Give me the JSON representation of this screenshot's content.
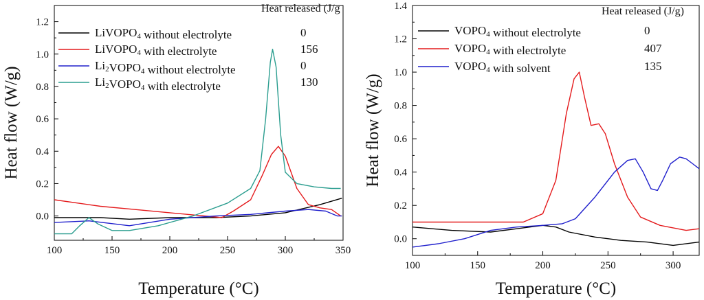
{
  "chart_data": [
    {
      "type": "line",
      "id": "left",
      "header": "Heat released (J/g",
      "xlabel": "Temperature (°C)",
      "ylabel": "Heat flow (W/g)",
      "xlim": [
        100,
        350
      ],
      "ylim": [
        -0.15,
        1.3
      ],
      "xticks": [
        100,
        150,
        200,
        250,
        300,
        350
      ],
      "yticks": [
        0.0,
        0.2,
        0.4,
        0.6,
        0.8,
        1.0,
        1.2
      ],
      "ytick_labels": [
        "0.0",
        "0.2",
        "0.4",
        "0.6",
        "0.8",
        "1.0",
        "1.2"
      ],
      "series": [
        {
          "name": "LiVOPO₄ without electrolyte",
          "heat": "0",
          "color": "#000000",
          "x": [
            100,
            140,
            165,
            200,
            240,
            270,
            300,
            330,
            349
          ],
          "y": [
            -0.01,
            -0.01,
            -0.02,
            -0.01,
            -0.01,
            0.0,
            0.02,
            0.07,
            0.11
          ]
        },
        {
          "name": "LiVOPO₄ with electrolyte",
          "heat": "156",
          "color": "#e41a1c",
          "x": [
            100,
            140,
            170,
            200,
            230,
            245,
            255,
            270,
            280,
            288,
            294,
            300,
            310,
            320,
            330,
            340,
            348
          ],
          "y": [
            0.1,
            0.06,
            0.04,
            0.02,
            0.0,
            -0.01,
            0.03,
            0.1,
            0.25,
            0.38,
            0.43,
            0.37,
            0.17,
            0.07,
            0.05,
            0.04,
            0.0
          ]
        },
        {
          "name": "Li₂VOPO₄ without electrolyte",
          "heat": "0",
          "color": "#1f1fcc",
          "x": [
            100,
            130,
            165,
            200,
            240,
            270,
            300,
            320,
            335,
            345,
            349
          ],
          "y": [
            -0.04,
            -0.03,
            -0.06,
            -0.02,
            0.0,
            0.01,
            0.03,
            0.04,
            0.03,
            0.0,
            0.0
          ]
        },
        {
          "name": "Li₂VOPO₄ with electrolyte",
          "heat": "130",
          "color": "#2a9d8f",
          "x": [
            100,
            115,
            122,
            130,
            138,
            150,
            165,
            190,
            220,
            250,
            270,
            278,
            283,
            287,
            289,
            292,
            296,
            300,
            310,
            325,
            340,
            348
          ],
          "y": [
            -0.11,
            -0.11,
            -0.06,
            -0.01,
            -0.05,
            -0.09,
            -0.09,
            -0.06,
            0.0,
            0.08,
            0.17,
            0.28,
            0.6,
            0.95,
            1.03,
            0.92,
            0.5,
            0.27,
            0.2,
            0.18,
            0.17,
            0.17
          ]
        }
      ]
    },
    {
      "type": "line",
      "id": "right",
      "header": "Heat released (J/g)",
      "xlabel": "Temperature (°C)",
      "ylabel": "Heat flow (W/g)",
      "xlim": [
        100,
        320
      ],
      "ylim": [
        -0.1,
        1.4
      ],
      "xticks": [
        100,
        150,
        200,
        250,
        300
      ],
      "yticks": [
        0.0,
        0.2,
        0.4,
        0.6,
        0.8,
        1.0,
        1.2,
        1.4
      ],
      "ytick_labels": [
        "0.0",
        "0.2",
        "0.4",
        "0.6",
        "0.8",
        "1.0",
        "1.2",
        "1.4"
      ],
      "series": [
        {
          "name": "VOPO₄ without electrolyte",
          "heat": "0",
          "color": "#000000",
          "x": [
            100,
            130,
            160,
            180,
            200,
            210,
            220,
            240,
            260,
            280,
            300,
            320
          ],
          "y": [
            0.07,
            0.05,
            0.04,
            0.06,
            0.08,
            0.07,
            0.04,
            0.01,
            -0.01,
            -0.02,
            -0.04,
            -0.02
          ]
        },
        {
          "name": "VOPO₄ with electrolyte",
          "heat": "407",
          "color": "#e41a1c",
          "x": [
            100,
            150,
            185,
            200,
            210,
            218,
            224,
            228,
            232,
            237,
            243,
            248,
            255,
            265,
            275,
            290,
            310,
            320
          ],
          "y": [
            0.1,
            0.1,
            0.1,
            0.15,
            0.35,
            0.75,
            0.96,
            1.0,
            0.85,
            0.68,
            0.69,
            0.63,
            0.45,
            0.25,
            0.13,
            0.08,
            0.05,
            0.06
          ]
        },
        {
          "name": "VOPO₄ with solvent",
          "heat": "135",
          "color": "#1f1fcc",
          "x": [
            100,
            120,
            140,
            160,
            180,
            200,
            215,
            225,
            240,
            255,
            265,
            271,
            277,
            283,
            288,
            292,
            298,
            305,
            310,
            315,
            320
          ],
          "y": [
            -0.05,
            -0.03,
            0.0,
            0.05,
            0.07,
            0.08,
            0.09,
            0.12,
            0.25,
            0.4,
            0.47,
            0.48,
            0.4,
            0.3,
            0.29,
            0.35,
            0.45,
            0.49,
            0.48,
            0.45,
            0.42
          ]
        }
      ]
    }
  ]
}
